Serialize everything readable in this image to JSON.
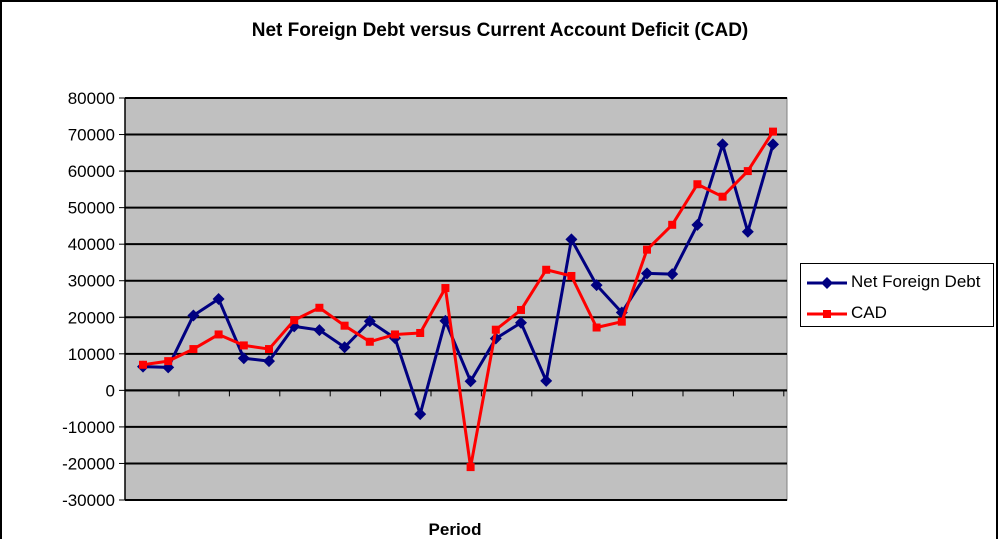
{
  "chart_data": {
    "type": "line",
    "title": "Net Foreign Debt versus Current Account Deficit (CAD)",
    "xlabel": "Period",
    "ylabel": "",
    "ylim": [
      -30000,
      80000
    ],
    "yticks": [
      -30000,
      -20000,
      -10000,
      0,
      10000,
      20000,
      30000,
      40000,
      50000,
      60000,
      70000,
      80000
    ],
    "ytick_labels": [
      "-30000",
      "-20000",
      "-10000",
      "0",
      "10000",
      "20000",
      "30000",
      "40000",
      "50000",
      "60000",
      "70000",
      "80000"
    ],
    "grid": true,
    "legend_position": "right",
    "x": [
      1,
      2,
      3,
      4,
      5,
      6,
      7,
      8,
      9,
      10,
      11,
      12,
      13,
      14,
      15,
      16,
      17,
      18,
      19,
      20,
      21,
      22,
      23,
      24,
      25,
      26
    ],
    "series": [
      {
        "name": "Net Foreign Debt",
        "color": "#000080",
        "marker": "diamond",
        "values": [
          6500,
          6300,
          20500,
          25000,
          8800,
          8000,
          17500,
          16500,
          11800,
          18900,
          14300,
          -6500,
          19000,
          2500,
          14200,
          18500,
          2600,
          41300,
          28800,
          21300,
          32000,
          31800,
          45300,
          67300,
          43400,
          67300
        ]
      },
      {
        "name": "CAD",
        "color": "#ff0000",
        "marker": "square",
        "values": [
          7000,
          8000,
          11300,
          15300,
          12300,
          11300,
          19200,
          22600,
          17700,
          13300,
          15300,
          15700,
          28000,
          -21000,
          16600,
          22000,
          33000,
          31300,
          17200,
          18800,
          38500,
          45300,
          56400,
          53000,
          60000,
          70800
        ]
      }
    ]
  }
}
